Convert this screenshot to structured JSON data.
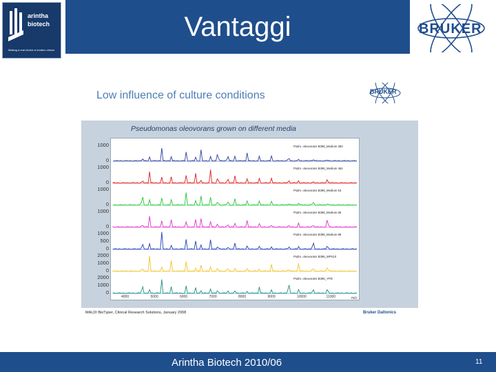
{
  "slide": {
    "title": "Vantaggi",
    "logo_left": {
      "line1": "arintha",
      "line2": "biotech",
      "tagline": "Making a real choice a modern choice"
    },
    "logo_right": "BRUKER"
  },
  "figure": {
    "heading": "Low influence of culture conditions",
    "corner_logo": "BRUKER",
    "title": "Pseudomonas oleovorans grown on different media",
    "y_ticks": [
      [
        "1000",
        "0"
      ],
      [
        "1000",
        "0"
      ],
      [
        "1000",
        "0"
      ],
      [
        "1000",
        "0"
      ],
      [
        "1000",
        "500",
        "0"
      ],
      [
        "2000",
        "1000",
        "0"
      ],
      [
        "2000",
        "1000",
        "0"
      ]
    ],
    "x_ticks": [
      "4000",
      "5000",
      "6000",
      "7000",
      "8000",
      "9000",
      "10000",
      "11000"
    ],
    "x_unit": "m/z",
    "spectra": [
      {
        "label": "Psdm. oleovorans B396_Medium 360",
        "color": "#2b3f9f"
      },
      {
        "label": "Psdm. oleovorans B396_Medium 464",
        "color": "#e01c1c"
      },
      {
        "label": "Psdm. oleovorans B396_Medium 53",
        "color": "#25c53c"
      },
      {
        "label": "Psdm. oleovorans B396_Medium 65",
        "color": "#e234c9"
      },
      {
        "label": "Psdm. oleovorans B396_Medium 98",
        "color": "#1f3fb8"
      },
      {
        "label": "Psdm. oleovorans B396_MPS10",
        "color": "#f1c42b"
      },
      {
        "label": "Psdm. oleovorans B396_YPD",
        "color": "#1e8f86"
      }
    ],
    "footer_left": "MALDI BioTyper, Clinical Research Solutions, January 2008",
    "footer_right": "Bruker Daltonics"
  },
  "footer": {
    "text": "Arintha Biotech 2010/06",
    "page": "11"
  }
}
